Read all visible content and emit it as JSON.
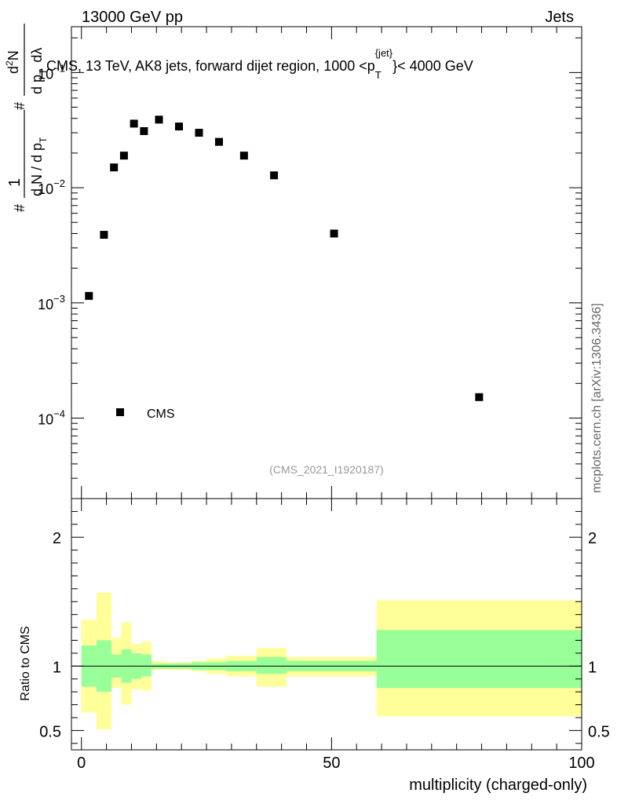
{
  "header": {
    "left": "13000 GeV pp",
    "right": "Jets"
  },
  "watermark": "mcplots.cern.ch [arXiv:1306.3436]",
  "analysis_tag": "(CMS_2021_I1920187)",
  "chart_data": [
    {
      "type": "scatter",
      "title": "CMS, 13 TeV, AK8 jets, forward dijet region, 1000 <p_T^{jet}< 4000 GeV",
      "title_parts": {
        "pre": "CMS, 13 TeV, AK8 jets, forward dijet region, 1000 <p",
        "sub": "T",
        "sup": "{jet}",
        "post": "}< 4000 GeV"
      },
      "ylabel_parts": {
        "hash1": "#",
        "one": "1",
        "den": "d N / d p",
        "den_sub": "T",
        "hash2": "#",
        "d2n": "d",
        "d2n_sup": "2",
        "d2n_tail": "N",
        "dpt": "d p",
        "dpt_sub": "T",
        "dlam": "dλ"
      },
      "yscale": "log",
      "ylim": [
        2e-05,
        0.25
      ],
      "y_ticks": [
        {
          "value": 0.1,
          "base": "10",
          "exp": "−1"
        },
        {
          "value": 0.01,
          "base": "10",
          "exp": "−2"
        },
        {
          "value": 0.001,
          "base": "10",
          "exp": "−3"
        },
        {
          "value": 0.0001,
          "base": "10",
          "exp": "−4"
        }
      ],
      "xlim": [
        -2,
        100
      ],
      "series": [
        {
          "name": "CMS",
          "marker": "square",
          "color": "#000000",
          "x": [
            1.5,
            4.5,
            6.5,
            8.5,
            10.5,
            12.5,
            15.5,
            19.5,
            23.5,
            27.5,
            32.5,
            38.5,
            50.5,
            79.5
          ],
          "y": [
            0.00115,
            0.0039,
            0.015,
            0.019,
            0.036,
            0.031,
            0.039,
            0.034,
            0.03,
            0.025,
            0.019,
            0.0128,
            0.004,
            0.000152
          ]
        }
      ],
      "legend": {
        "position": "bottom-left",
        "entries": [
          "CMS"
        ]
      }
    },
    {
      "type": "area",
      "ylabel": "Ratio to CMS",
      "xlabel": "multiplicity (charged-only)",
      "xlim": [
        -2,
        100
      ],
      "ylim": [
        0.35,
        2.3
      ],
      "x_ticks": [
        0,
        50,
        100
      ],
      "y_ticks": [
        0.5,
        1,
        2
      ],
      "y_tick_labels": [
        "0.5",
        "1",
        "2"
      ],
      "reference_line": 1,
      "bands": {
        "bin_edges": [
          0,
          3,
          6,
          8,
          10,
          12,
          14,
          17,
          22,
          25,
          29,
          35,
          41,
          59,
          100
        ],
        "inner": {
          "color": "#99ff99",
          "lo": [
            0.84,
            0.8,
            0.91,
            0.87,
            0.9,
            0.92,
            0.98,
            0.98,
            0.97,
            0.97,
            0.96,
            0.94,
            0.96,
            0.83
          ],
          "hi": [
            1.16,
            1.2,
            1.09,
            1.13,
            1.1,
            1.09,
            1.02,
            1.02,
            1.03,
            1.03,
            1.04,
            1.07,
            1.04,
            1.28
          ]
        },
        "outer": {
          "color": "#ffff99",
          "lo": [
            0.64,
            0.51,
            0.83,
            0.7,
            0.82,
            0.81,
            0.97,
            0.97,
            0.96,
            0.94,
            0.92,
            0.84,
            0.92,
            0.61
          ],
          "hi": [
            1.36,
            1.57,
            1.22,
            1.34,
            1.17,
            1.19,
            1.04,
            1.03,
            1.04,
            1.06,
            1.08,
            1.14,
            1.07,
            1.51
          ]
        }
      }
    }
  ]
}
